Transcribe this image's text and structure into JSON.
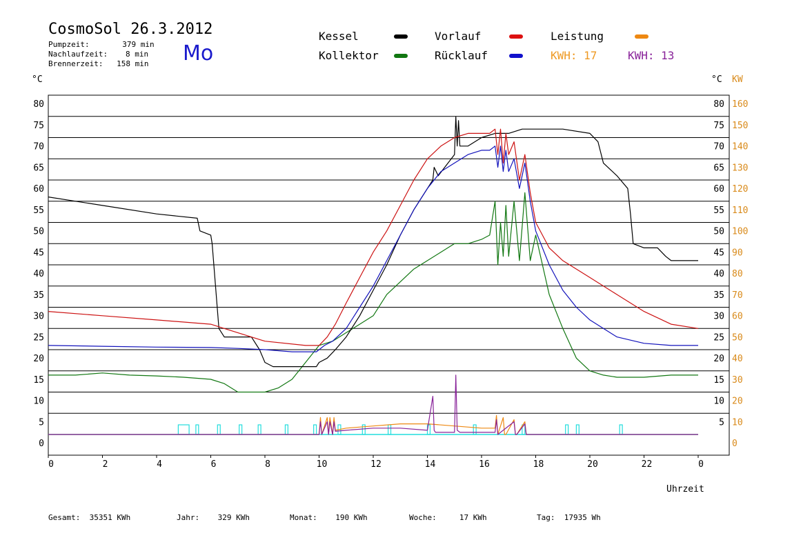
{
  "header": {
    "title": "CosmoSol 26.3.2012",
    "day": "Mo",
    "stats": [
      {
        "label": "Pumpzeit:",
        "value": "379 min"
      },
      {
        "label": "Nachlaufzeit:",
        "value": "8 min"
      },
      {
        "label": "Brennerzeit:",
        "value": "158 min"
      }
    ]
  },
  "legend": {
    "kessel": "Kessel",
    "vorlauf": "Vorlauf",
    "leistung": "Leistung",
    "kollektor": "Kollektor",
    "ruecklauf": "Rücklauf",
    "kwh1": "KWH: 17",
    "kwh2": "KWH: 13"
  },
  "axes": {
    "left_unit": "°C",
    "right_unit_c": "°C",
    "right_unit_kw": "KW",
    "xlabel": "Uhrzeit"
  },
  "totals": {
    "gesamt_label": "Gesamt:",
    "gesamt_value": "35351 KWh",
    "jahr_label": "Jahr:",
    "jahr_value": "329 KWh",
    "monat_label": "Monat:",
    "monat_value": "190 KWh",
    "woche_label": "Woche:",
    "woche_value": "17 KWh",
    "tag_label": "Tag:",
    "tag_value": "17935 Wh"
  },
  "colors": {
    "kessel": "#000000",
    "vorlauf": "#cc1111",
    "ruecklauf": "#1111bb",
    "kollektor": "#117711",
    "leistung": "#ee8811",
    "kwh2": "#882299",
    "pump": "#22dddd",
    "kw_axis": "#d98a1a"
  },
  "chart_data": {
    "type": "line",
    "title": "CosmoSol 26.3.2012",
    "xlabel": "Uhrzeit",
    "ylabel": "°C",
    "xlim": [
      0,
      24
    ],
    "ylim": [
      0,
      80
    ],
    "y2lim": [
      0,
      160
    ],
    "y2label": "KW",
    "grid": true,
    "x_ticks": [
      "0",
      "2",
      "4",
      "6",
      "8",
      "10",
      "12",
      "14",
      "16",
      "18",
      "20",
      "22",
      "0"
    ],
    "y_ticks_left": [
      "0",
      "5",
      "10",
      "15",
      "20",
      "25",
      "30",
      "35",
      "40",
      "45",
      "50",
      "55",
      "60",
      "65",
      "70",
      "75",
      "80"
    ],
    "y_ticks_right_c": [
      "5",
      "10",
      "15",
      "20",
      "25",
      "30",
      "35",
      "40",
      "45",
      "50",
      "55",
      "60",
      "65",
      "70",
      "75",
      "80"
    ],
    "y_ticks_right_kw": [
      "0",
      "10",
      "20",
      "30",
      "40",
      "50",
      "60",
      "70",
      "80",
      "90",
      "100",
      "110",
      "120",
      "130",
      "140",
      "150",
      "160"
    ],
    "series": [
      {
        "name": "Kessel",
        "color": "#000000",
        "x": [
          0,
          2,
          4,
          5.5,
          5.6,
          6.0,
          6.05,
          6.3,
          6.5,
          7.5,
          7.8,
          8.0,
          8.3,
          9,
          9.9,
          10.0,
          10.3,
          10.6,
          11,
          11.5,
          12,
          12.5,
          13,
          13.5,
          14.0,
          14.2,
          14.25,
          14.4,
          15.0,
          15.05,
          15.1,
          15.15,
          15.2,
          15.5,
          16.0,
          16.5,
          17.0,
          17.5,
          18,
          19,
          20.0,
          20.3,
          20.5,
          21,
          21.4,
          21.5,
          21.6,
          22.0,
          22.5,
          22.8,
          23.0,
          24.0
        ],
        "y": [
          56,
          54,
          52,
          51,
          48,
          47,
          45,
          25,
          23,
          23,
          20,
          17,
          16,
          16,
          16,
          17,
          18,
          20,
          23,
          28,
          34,
          40,
          47,
          53,
          58,
          60,
          63,
          61,
          66,
          75,
          68,
          74,
          68,
          68,
          70,
          71,
          71,
          72,
          72,
          72,
          71,
          69,
          64,
          61,
          58,
          52,
          45,
          44,
          44,
          42,
          41,
          41
        ]
      },
      {
        "name": "Vorlauf",
        "color": "#cc1111",
        "x": [
          0,
          2,
          4,
          6,
          6.5,
          8,
          9.5,
          10.0,
          10.3,
          10.6,
          11,
          11.5,
          12,
          12.5,
          13,
          13.5,
          14,
          14.5,
          15,
          15.5,
          16,
          16.3,
          16.5,
          16.6,
          16.7,
          16.8,
          16.9,
          17.0,
          17.2,
          17.4,
          17.6,
          17.8,
          18.0,
          18.5,
          19,
          20,
          21,
          22,
          23,
          24
        ],
        "y": [
          29,
          28,
          27,
          26,
          25,
          22,
          21,
          21,
          23,
          26,
          31,
          37,
          43,
          48,
          54,
          60,
          65,
          68,
          70,
          71,
          71,
          71,
          72,
          66,
          72,
          64,
          71,
          66,
          69,
          60,
          66,
          57,
          50,
          44,
          41,
          37,
          33,
          29,
          26,
          25
        ]
      },
      {
        "name": "Rücklauf",
        "color": "#1111bb",
        "x": [
          0,
          2,
          4,
          6,
          7,
          8,
          9,
          9.9,
          10.2,
          10.5,
          11,
          11.5,
          12,
          12.5,
          13,
          13.5,
          14,
          14.5,
          15,
          15.5,
          16,
          16.3,
          16.5,
          16.6,
          16.7,
          16.8,
          16.9,
          17.0,
          17.2,
          17.4,
          17.6,
          17.8,
          18.0,
          18.5,
          19,
          19.5,
          20,
          20.5,
          21,
          22,
          23,
          24
        ],
        "y": [
          21,
          20.8,
          20.6,
          20.5,
          20.3,
          20,
          19.5,
          19.5,
          21,
          22,
          25,
          30,
          35,
          41,
          47,
          53,
          58,
          62,
          64,
          66,
          67,
          67,
          68,
          63,
          68,
          62,
          67,
          62,
          65,
          58,
          64,
          55,
          48,
          40,
          34,
          30,
          27,
          25,
          23,
          21.5,
          21,
          21
        ]
      },
      {
        "name": "Kollektor",
        "color": "#117711",
        "x": [
          0,
          1,
          2,
          3,
          4,
          5,
          6,
          6.5,
          7,
          7.5,
          8,
          8.5,
          9,
          9.5,
          10,
          10.5,
          11,
          11.5,
          12,
          12.5,
          13,
          13.5,
          14,
          14.5,
          15,
          15.5,
          16,
          16.3,
          16.5,
          16.6,
          16.7,
          16.8,
          16.9,
          17.0,
          17.2,
          17.4,
          17.6,
          17.8,
          18.0,
          18.5,
          19,
          19.5,
          20,
          20.5,
          21,
          22,
          23,
          24
        ],
        "y": [
          14,
          14,
          14.5,
          14,
          13.8,
          13.5,
          13,
          12,
          10,
          10,
          10,
          11,
          13,
          17,
          21,
          22,
          24,
          26,
          28,
          33,
          36,
          39,
          41,
          43,
          45,
          45,
          46,
          47,
          55,
          40,
          50,
          42,
          54,
          42,
          55,
          41,
          57,
          41,
          47,
          33,
          25,
          18,
          15,
          14,
          13.5,
          13.5,
          14,
          14
        ]
      },
      {
        "name": "Leistung",
        "color": "#ee8811",
        "x": [
          0,
          9.9,
          10.0,
          10.05,
          10.1,
          10.3,
          10.35,
          10.4,
          10.5,
          10.55,
          10.6,
          11,
          12,
          13,
          14,
          15,
          16,
          16.5,
          16.55,
          16.6,
          16.8,
          16.85,
          16.9,
          17.2,
          17.25,
          17.3,
          17.6,
          17.65,
          17.7,
          18,
          24
        ],
        "y": [
          0,
          0,
          0,
          8,
          0,
          8,
          0,
          8,
          0,
          8,
          2,
          3,
          4,
          5,
          5,
          4,
          3,
          3,
          9,
          0,
          8,
          0,
          0,
          7,
          0,
          0,
          6,
          0,
          0,
          0,
          0
        ]
      },
      {
        "name": "KWH: 13",
        "color": "#882299",
        "x": [
          0,
          9.9,
          10.0,
          10.05,
          10.1,
          10.3,
          10.35,
          10.4,
          10.5,
          10.55,
          10.6,
          11,
          12,
          13,
          14,
          14.2,
          14.25,
          14.3,
          15,
          15.05,
          15.1,
          15.2,
          16,
          16.5,
          16.55,
          16.6,
          17.2,
          17.25,
          17.3,
          17.6,
          17.65,
          17.7,
          18,
          24
        ],
        "y": [
          0,
          0,
          0,
          6,
          0,
          6,
          0,
          6,
          0,
          6,
          1.5,
          2,
          3,
          3,
          2,
          18,
          2,
          1,
          1,
          28,
          2,
          1,
          1,
          1,
          7,
          0,
          6,
          0,
          0,
          5,
          0,
          0,
          0,
          0
        ]
      }
    ],
    "pump_bars": [
      {
        "start": 4.8,
        "end": 5.2
      },
      {
        "start": 5.45,
        "end": 5.55
      },
      {
        "start": 6.25,
        "end": 6.35
      },
      {
        "start": 7.05,
        "end": 7.15
      },
      {
        "start": 7.75,
        "end": 7.85
      },
      {
        "start": 8.75,
        "end": 8.85
      },
      {
        "start": 9.8,
        "end": 9.9
      },
      {
        "start": 10.7,
        "end": 10.8
      },
      {
        "start": 11.6,
        "end": 11.7
      },
      {
        "start": 12.55,
        "end": 12.65
      },
      {
        "start": 14.0,
        "end": 14.1
      },
      {
        "start": 15.7,
        "end": 15.8
      },
      {
        "start": 17.5,
        "end": 17.6
      },
      {
        "start": 19.1,
        "end": 19.2
      },
      {
        "start": 19.5,
        "end": 19.6
      },
      {
        "start": 21.1,
        "end": 21.2
      }
    ]
  }
}
